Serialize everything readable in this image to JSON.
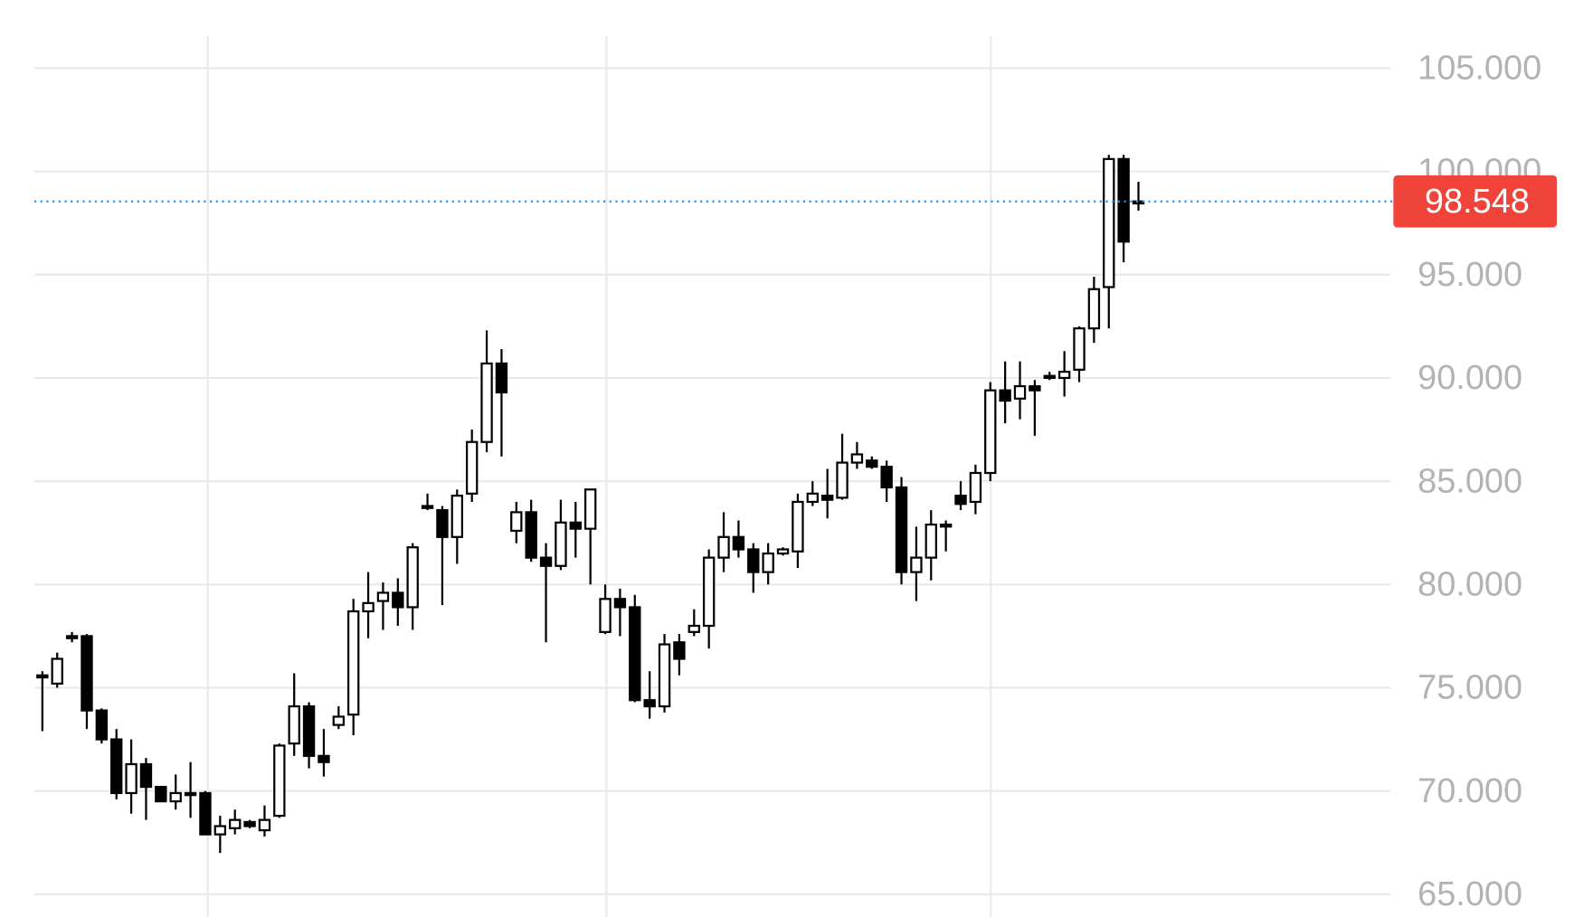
{
  "chart_data": {
    "type": "candlestick",
    "open": [
      75.5,
      75.2,
      77.4,
      77.5,
      73.9,
      72.5,
      69.9,
      71.3,
      70.2,
      69.5,
      69.9,
      69.9,
      67.9,
      68.2,
      68.5,
      68.1,
      68.8,
      72.3,
      74.1,
      71.7,
      73.2,
      73.7,
      78.7,
      79.2,
      79.6,
      78.9,
      83.8,
      83.6,
      82.3,
      84.4,
      86.9,
      90.7,
      82.6,
      83.5,
      81.3,
      80.9,
      83.0,
      82.7,
      77.7,
      79.3,
      78.9,
      74.4,
      74.1,
      77.2,
      77.7,
      78.0,
      81.3,
      82.3,
      81.7,
      80.6,
      81.5,
      81.6,
      84.0,
      84.3,
      84.2,
      85.9,
      86.0,
      85.7,
      84.7,
      80.6,
      81.3,
      82.9,
      84.3,
      84.0,
      85.4,
      89.4,
      89.0,
      89.6,
      90.1,
      90.0,
      90.4,
      92.4,
      94.4,
      100.6,
      98.5
    ],
    "high": [
      75.8,
      76.7,
      77.7,
      77.6,
      74.0,
      73.0,
      72.5,
      71.6,
      70.2,
      70.8,
      71.4,
      70.0,
      68.8,
      69.1,
      68.6,
      69.3,
      72.3,
      75.7,
      74.3,
      73.0,
      74.1,
      79.3,
      80.6,
      80.1,
      80.3,
      82.0,
      84.4,
      83.8,
      84.6,
      87.5,
      92.3,
      91.4,
      84.0,
      84.1,
      82.0,
      84.1,
      84.0,
      84.6,
      80.0,
      79.8,
      79.5,
      75.8,
      77.6,
      77.6,
      78.8,
      81.7,
      83.5,
      83.1,
      82.0,
      82.0,
      81.8,
      84.4,
      85.0,
      85.6,
      87.3,
      86.9,
      86.2,
      86.0,
      85.2,
      82.8,
      83.6,
      83.1,
      85.0,
      85.8,
      89.8,
      90.8,
      90.8,
      89.9,
      90.3,
      91.3,
      92.5,
      94.9,
      100.8,
      100.8,
      99.5
    ],
    "low": [
      72.9,
      75.0,
      77.2,
      73.0,
      72.3,
      69.6,
      68.9,
      68.6,
      69.5,
      69.1,
      68.7,
      67.9,
      67.0,
      67.9,
      68.2,
      67.8,
      68.7,
      71.7,
      71.1,
      70.7,
      73.0,
      72.7,
      77.4,
      77.8,
      78.0,
      77.8,
      83.6,
      79.0,
      81.0,
      84.0,
      86.4,
      86.2,
      82.0,
      81.1,
      77.2,
      80.7,
      81.3,
      80.0,
      77.6,
      77.5,
      74.3,
      73.5,
      73.8,
      75.6,
      77.5,
      76.9,
      80.6,
      81.3,
      79.6,
      80.0,
      81.4,
      80.8,
      83.8,
      83.2,
      84.1,
      85.6,
      85.6,
      84.0,
      80.0,
      79.2,
      80.2,
      81.6,
      83.6,
      83.4,
      85.0,
      87.8,
      88.0,
      87.2,
      89.9,
      89.1,
      89.8,
      91.7,
      92.4,
      95.6,
      98.1
    ],
    "close": [
      75.6,
      76.4,
      77.5,
      73.9,
      72.5,
      69.9,
      71.3,
      70.2,
      69.5,
      69.9,
      69.9,
      67.9,
      68.3,
      68.6,
      68.3,
      68.6,
      72.2,
      74.1,
      71.7,
      71.4,
      73.6,
      78.7,
      79.1,
      79.6,
      78.9,
      81.8,
      83.8,
      82.3,
      84.3,
      86.9,
      90.7,
      89.3,
      83.5,
      81.3,
      80.9,
      83.0,
      82.7,
      84.6,
      79.3,
      78.9,
      74.4,
      74.1,
      77.1,
      76.4,
      78.0,
      81.3,
      82.3,
      81.7,
      80.6,
      81.5,
      81.7,
      84.0,
      84.4,
      84.1,
      85.9,
      86.3,
      85.7,
      84.7,
      80.6,
      81.3,
      82.9,
      82.9,
      83.9,
      85.4,
      89.4,
      88.9,
      89.6,
      89.4,
      90.1,
      90.3,
      92.4,
      94.3,
      100.6,
      96.6,
      98.548
    ],
    "last_price": 98.548,
    "ylim": [
      63.9,
      108.3
    ],
    "yticks": [
      {
        "value": 65,
        "label": "65.000"
      },
      {
        "value": 70,
        "label": "70.000"
      },
      {
        "value": 75,
        "label": "75.000"
      },
      {
        "value": 80,
        "label": "80.000"
      },
      {
        "value": 85,
        "label": "85.000"
      },
      {
        "value": 90,
        "label": "90.000"
      },
      {
        "value": 95,
        "label": "95.000"
      },
      {
        "value": 100,
        "label": "100.000"
      },
      {
        "value": 105,
        "label": "105.000"
      }
    ],
    "grid": true,
    "up_color": "#ffffff",
    "down_color": "#000000",
    "last_price_color": "#f0433a",
    "last_line_color": "#2196f3"
  }
}
